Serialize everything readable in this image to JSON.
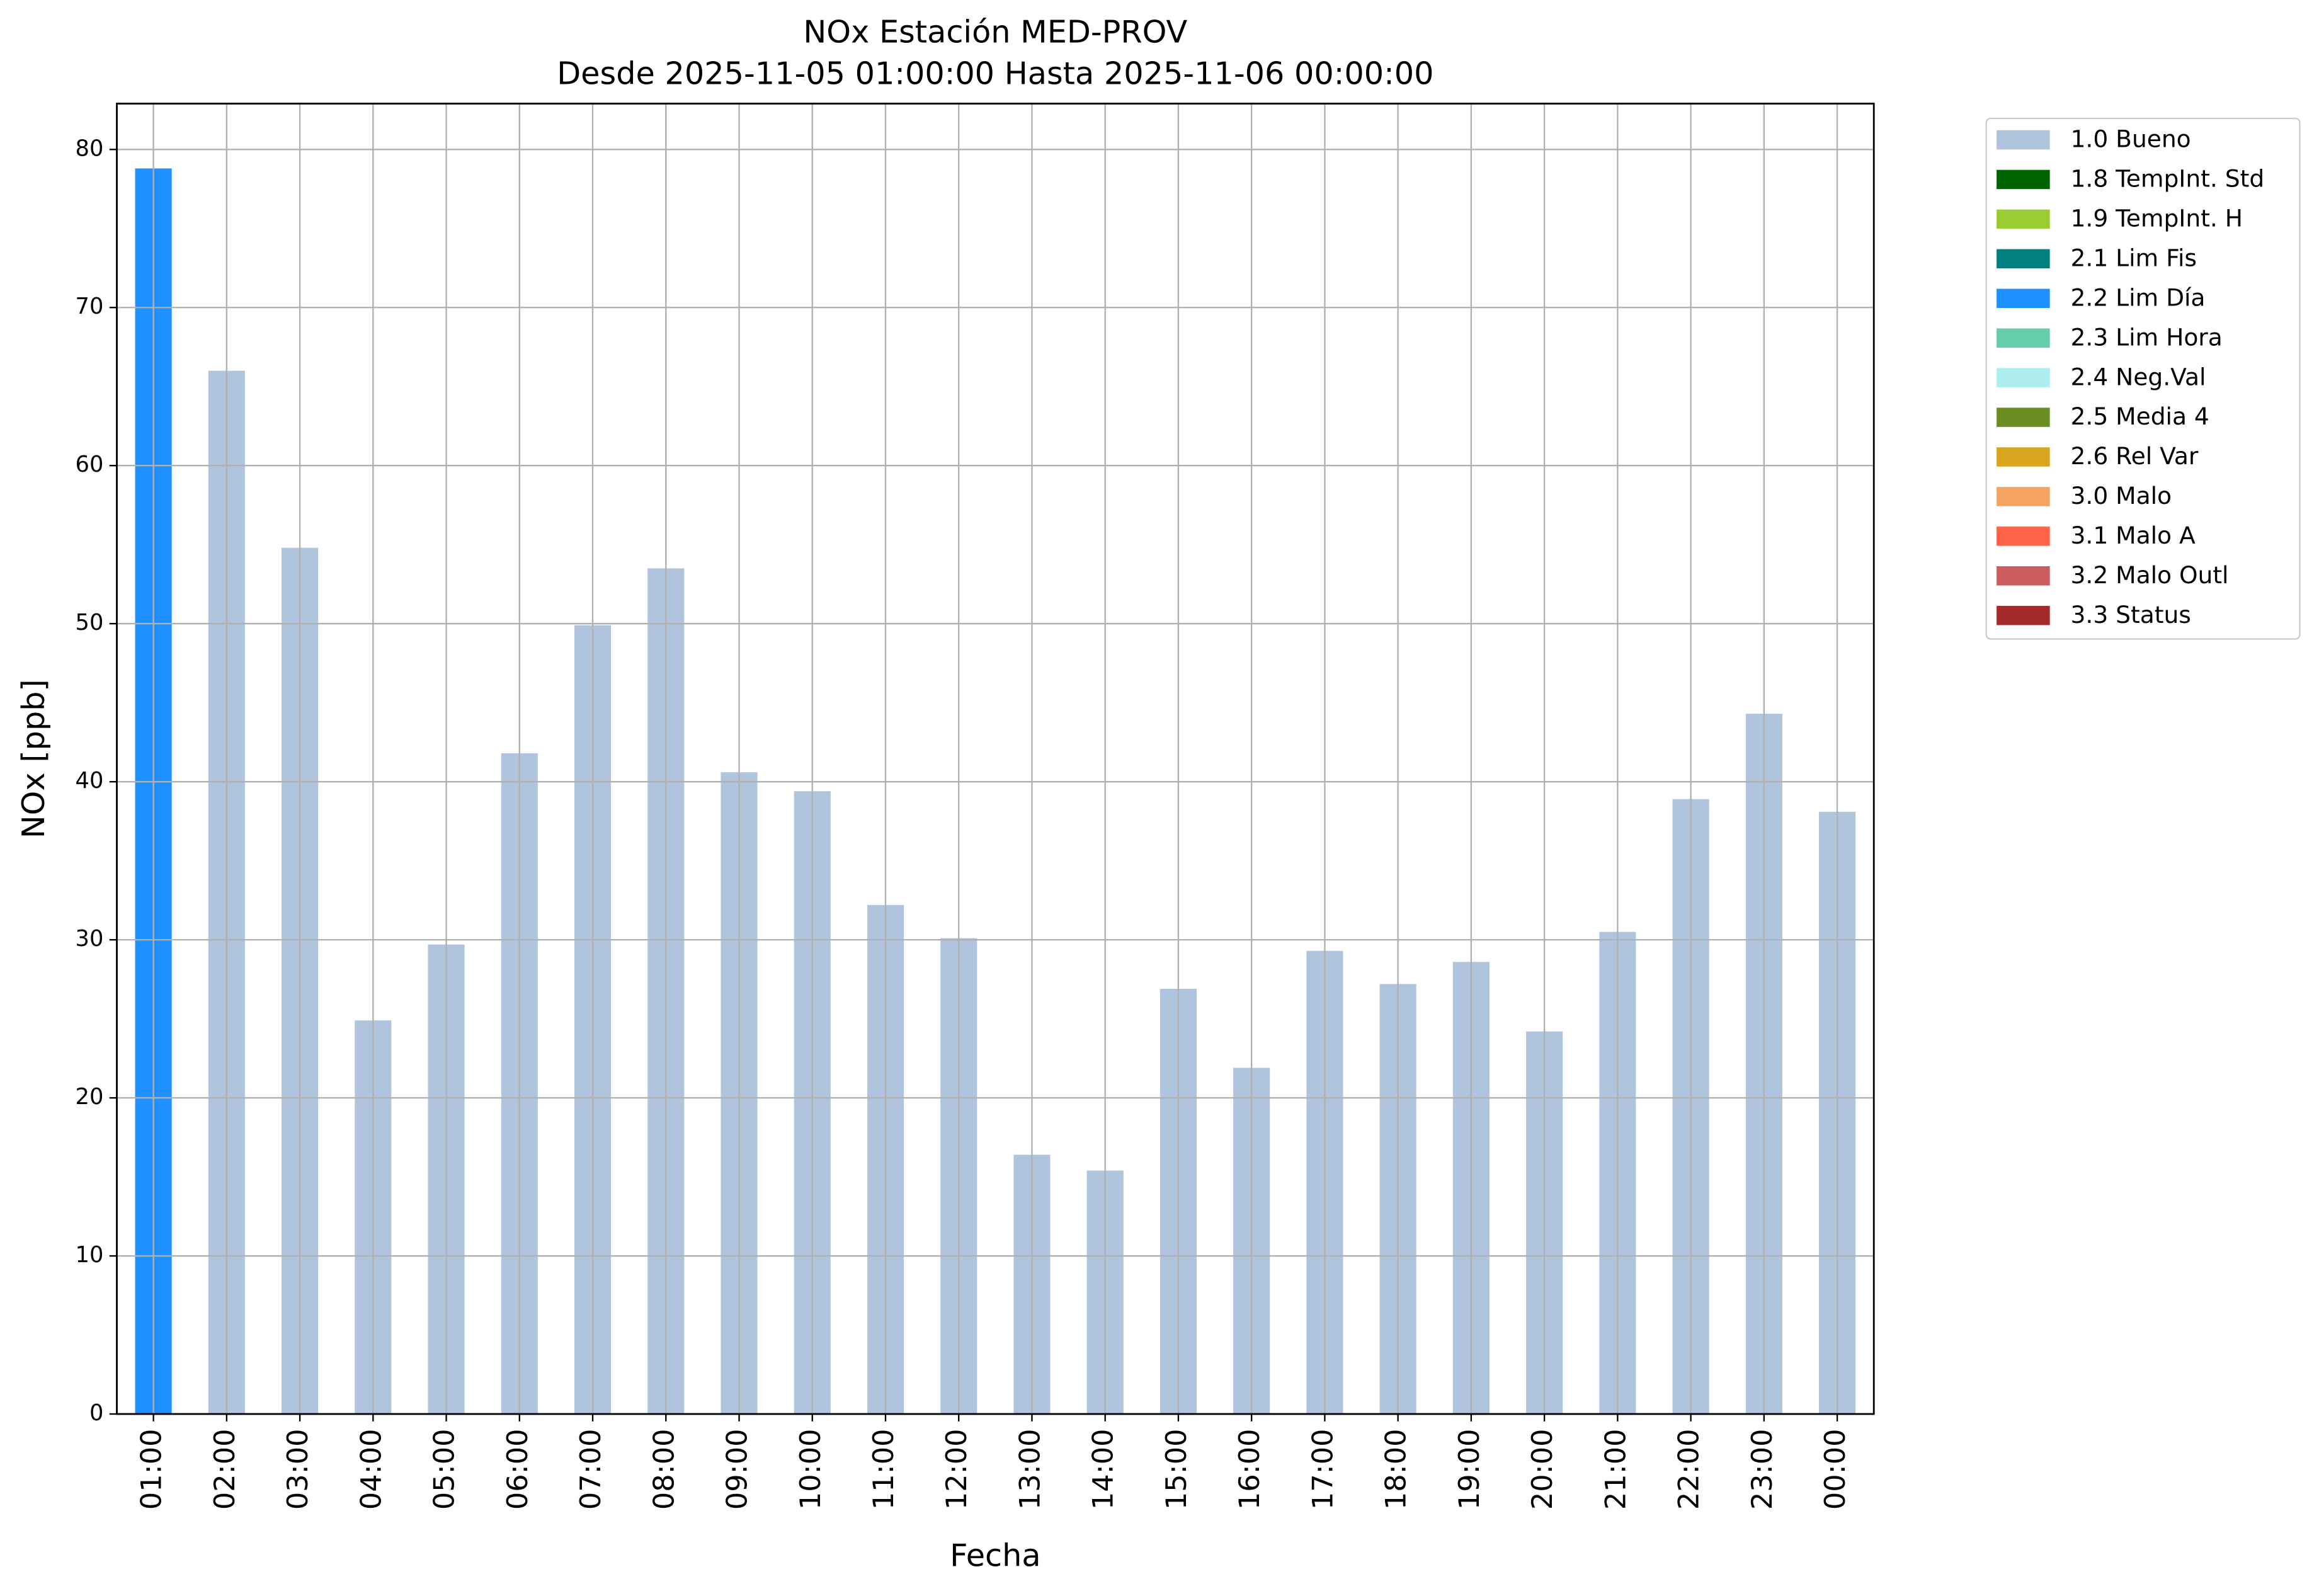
{
  "chart_data": {
    "type": "bar",
    "stacked": true,
    "title": "NOx Estación MED-PROV",
    "subtitle": "Desde 2025-11-05 01:00:00 Hasta 2025-11-06 00:00:00",
    "x_label": "Fecha",
    "y_label": "NOx [ppb]",
    "categories": [
      "01:00",
      "02:00",
      "03:00",
      "04:00",
      "05:00",
      "06:00",
      "07:00",
      "08:00",
      "09:00",
      "10:00",
      "11:00",
      "12:00",
      "13:00",
      "14:00",
      "15:00",
      "16:00",
      "17:00",
      "18:00",
      "19:00",
      "20:00",
      "21:00",
      "22:00",
      "23:00",
      "00:00"
    ],
    "series": [
      {
        "name": "1.0 Bueno",
        "color": "#b0c4de",
        "values": [
          null,
          66,
          54.8,
          24.9,
          29.7,
          41.8,
          49.9,
          53.5,
          40.6,
          39.4,
          32.2,
          30.1,
          16.4,
          15.4,
          26.9,
          21.9,
          29.3,
          27.2,
          28.6,
          24.2,
          30.5,
          38.9,
          44.3,
          38.1
        ]
      },
      {
        "name": "1.8 TempInt. Std",
        "color": "#006400",
        "values": [
          null,
          null,
          null,
          null,
          null,
          null,
          null,
          null,
          null,
          null,
          null,
          null,
          null,
          null,
          null,
          null,
          null,
          null,
          null,
          null,
          null,
          null,
          null,
          null
        ]
      },
      {
        "name": "1.9 TempInt. H",
        "color": "#9acd32",
        "values": [
          null,
          null,
          null,
          null,
          null,
          null,
          null,
          null,
          null,
          null,
          null,
          null,
          null,
          null,
          null,
          null,
          null,
          null,
          null,
          null,
          null,
          null,
          null,
          null
        ]
      },
      {
        "name": "2.1 Lim Fis",
        "color": "#008080",
        "values": [
          null,
          null,
          null,
          null,
          null,
          null,
          null,
          null,
          null,
          null,
          null,
          null,
          null,
          null,
          null,
          null,
          null,
          null,
          null,
          null,
          null,
          null,
          null,
          null
        ]
      },
      {
        "name": "2.2 Lim Día",
        "color": "#1e90ff",
        "values": [
          78.8,
          null,
          null,
          null,
          null,
          null,
          null,
          null,
          null,
          null,
          null,
          null,
          null,
          null,
          null,
          null,
          null,
          null,
          null,
          null,
          null,
          null,
          null,
          null
        ]
      },
      {
        "name": "2.3 Lim Hora",
        "color": "#66cdaa",
        "values": [
          null,
          null,
          null,
          null,
          null,
          null,
          null,
          null,
          null,
          null,
          null,
          null,
          null,
          null,
          null,
          null,
          null,
          null,
          null,
          null,
          null,
          null,
          null,
          null
        ]
      },
      {
        "name": "2.4 Neg.Val",
        "color": "#afeeee",
        "values": [
          null,
          null,
          null,
          null,
          null,
          null,
          null,
          null,
          null,
          null,
          null,
          null,
          null,
          null,
          null,
          null,
          null,
          null,
          null,
          null,
          null,
          null,
          null,
          null
        ]
      },
      {
        "name": "2.5 Media 4",
        "color": "#6b8e23",
        "values": [
          null,
          null,
          null,
          null,
          null,
          null,
          null,
          null,
          null,
          null,
          null,
          null,
          null,
          null,
          null,
          null,
          null,
          null,
          null,
          null,
          null,
          null,
          null,
          null
        ]
      },
      {
        "name": "2.6 Rel Var",
        "color": "#daa520",
        "values": [
          null,
          null,
          null,
          null,
          null,
          null,
          null,
          null,
          null,
          null,
          null,
          null,
          null,
          null,
          null,
          null,
          null,
          null,
          null,
          null,
          null,
          null,
          null,
          null
        ]
      },
      {
        "name": "3.0 Malo",
        "color": "#f4a460",
        "values": [
          null,
          null,
          null,
          null,
          null,
          null,
          null,
          null,
          null,
          null,
          null,
          null,
          null,
          null,
          null,
          null,
          null,
          null,
          null,
          null,
          null,
          null,
          null,
          null
        ]
      },
      {
        "name": "3.1 Malo A",
        "color": "#ff6347",
        "values": [
          null,
          null,
          null,
          null,
          null,
          null,
          null,
          null,
          null,
          null,
          null,
          null,
          null,
          null,
          null,
          null,
          null,
          null,
          null,
          null,
          null,
          null,
          null,
          null
        ]
      },
      {
        "name": "3.2 Malo Outl",
        "color": "#cd5c5c",
        "values": [
          null,
          null,
          null,
          null,
          null,
          null,
          null,
          null,
          null,
          null,
          null,
          null,
          null,
          null,
          null,
          null,
          null,
          null,
          null,
          null,
          null,
          null,
          null,
          null
        ]
      },
      {
        "name": "3.3 Status",
        "color": "#a52a2a",
        "values": [
          null,
          null,
          null,
          null,
          null,
          null,
          null,
          null,
          null,
          null,
          null,
          null,
          null,
          null,
          null,
          null,
          null,
          null,
          null,
          null,
          null,
          null,
          null,
          null
        ]
      }
    ],
    "ylim": [
      0,
      82.9
    ],
    "yticks": [
      0,
      10,
      20,
      30,
      40,
      50,
      60,
      70,
      80
    ],
    "grid": true,
    "legend": "outside-upper-right"
  }
}
